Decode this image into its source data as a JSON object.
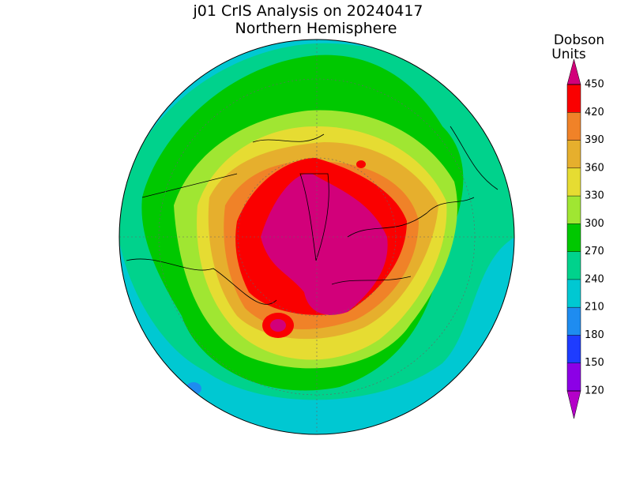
{
  "header": {
    "title": "j01 CrIS Analysis on 20240417",
    "subtitle": "Northern Hemisphere"
  },
  "colorbar": {
    "label": [
      "Dobson",
      "Units"
    ],
    "ticks": [
      120,
      150,
      180,
      210,
      240,
      270,
      300,
      330,
      360,
      390,
      420,
      450
    ],
    "under_color": "#b400c8",
    "colors": [
      "#8c00e6",
      "#1e3cff",
      "#1e8cf0",
      "#00c8d2",
      "#00d28c",
      "#00c800",
      "#a0e632",
      "#e6dc32",
      "#e6af2d",
      "#f08228",
      "#fa0000"
    ],
    "over_color": "#d2007a"
  }
}
